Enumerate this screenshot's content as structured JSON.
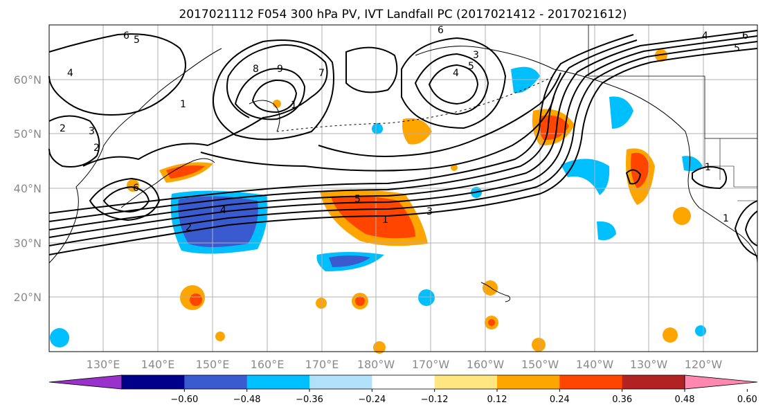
{
  "title": "2017021112 F054 300 hPa PV, IVT Landfall PC (2017021412 - 2017021612)",
  "latitude_labels": [
    "60°N",
    "50°N",
    "40°N",
    "30°N",
    "20°N"
  ],
  "longitude_labels": [
    "130°E",
    "140°E",
    "150°E",
    "160°E",
    "170°E",
    "180°W",
    "170°W",
    "160°W",
    "150°W",
    "140°W",
    "130°W",
    "120°W"
  ],
  "colorbar": {
    "tick_labels": [
      "−0.60",
      "−0.48",
      "−0.36",
      "−0.24",
      "−0.12",
      "0.12",
      "0.24",
      "0.36",
      "0.48",
      "0.60"
    ],
    "colors": [
      "#9932cc",
      "#00008b",
      "#3a5bcf",
      "#00bfff",
      "#b0e0fa",
      "#ffffff",
      "#ffe680",
      "#ffa500",
      "#ff4500",
      "#b22222",
      "#ff88b0"
    ]
  },
  "contour_labels": [
    "6",
    "5",
    "4",
    "3",
    "2",
    "1",
    "9",
    "8",
    "7",
    "6",
    "5",
    "4",
    "3",
    "2",
    "1",
    "6",
    "2",
    "4",
    "5",
    "1",
    "3",
    "1",
    "6",
    "4",
    "5",
    "1"
  ],
  "colors": {
    "ocean": "#ffffff",
    "contour": "#000000",
    "grid": "#b0b0b0",
    "coast": "#000000"
  }
}
